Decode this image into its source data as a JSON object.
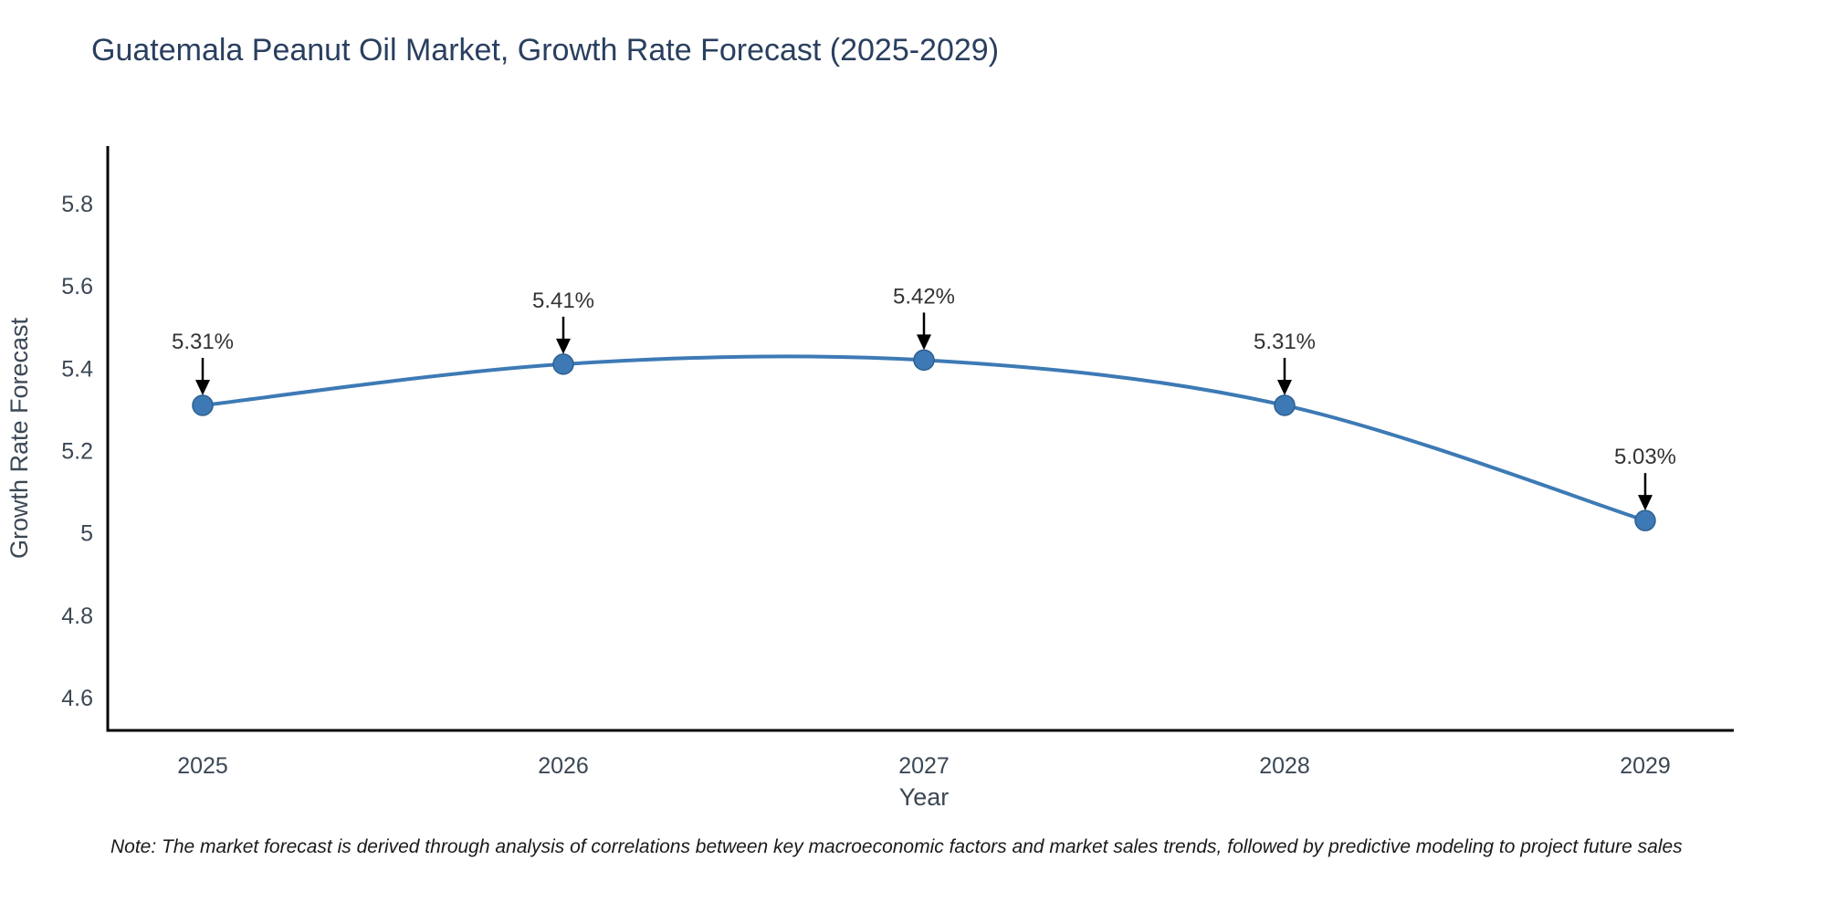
{
  "title": "Guatemala Peanut Oil Market, Growth Rate Forecast (2025-2029)",
  "note": "Note: The market forecast is derived through analysis of correlations between key macroeconomic factors and market sales trends, followed by predictive modeling to project future sales",
  "chart_data": {
    "type": "line",
    "line_shape": "spline",
    "title": "Guatemala Peanut Oil Market, Growth Rate Forecast (2025-2029)",
    "xlabel": "Year",
    "ylabel": "Growth Rate Forecast",
    "x": [
      2025,
      2026,
      2027,
      2028,
      2029
    ],
    "series": [
      {
        "name": "Growth Rate Forecast",
        "values": [
          5.31,
          5.41,
          5.42,
          5.31,
          5.03
        ]
      }
    ],
    "point_labels": [
      "5.31%",
      "5.41%",
      "5.42%",
      "5.31%",
      "5.03%"
    ],
    "yticks": [
      4.6,
      4.8,
      5,
      5.2,
      5.4,
      5.6,
      5.8
    ],
    "ylim": [
      4.52,
      5.94
    ],
    "grid": false,
    "legend_position": "none",
    "colors": {
      "line": "#3d7ab5",
      "marker": "#3d7ab5",
      "marker_edge": "#2d5f8f",
      "axis": "#000000",
      "tick_text": "#3b4754",
      "axis_title_text": "#3b4754",
      "annotation_text": "#333333",
      "annotation_arrow": "#000000",
      "title_text": "#2a3f5f"
    }
  }
}
